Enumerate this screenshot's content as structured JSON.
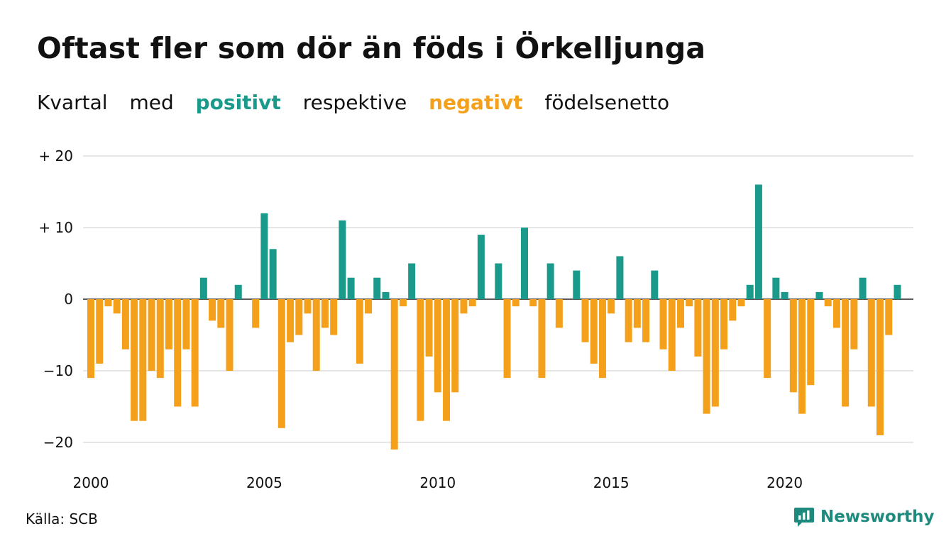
{
  "title": "Oftast fler som dör än föds i Örkelljunga",
  "subtitle": {
    "word1": "Kvartal",
    "word2": "med",
    "positive": "positivt",
    "word3": "respektive",
    "negative": "negativt",
    "word4": "födelsenetto"
  },
  "source": "Källa: SCB",
  "brand": "Newsworthy",
  "colors": {
    "positive": "#1a9a8b",
    "negative": "#f5a01a",
    "grid": "#dddddd",
    "brand": "#1d8a7d"
  },
  "chart_data": {
    "type": "bar",
    "x_start_year": 2000,
    "periods_per_year": 4,
    "ylim": [
      -22,
      20
    ],
    "yticks": [
      {
        "value": 20,
        "label": "+ 20"
      },
      {
        "value": 10,
        "label": "+ 10"
      },
      {
        "value": 0,
        "label": "0"
      },
      {
        "value": -10,
        "label": "−10"
      },
      {
        "value": -20,
        "label": "−20"
      }
    ],
    "xticks": [
      "2000",
      "2005",
      "2010",
      "2015",
      "2020"
    ],
    "values": [
      -11,
      -9,
      -1,
      -2,
      -7,
      -17,
      -17,
      -10,
      -11,
      -7,
      -15,
      -7,
      -15,
      3,
      -3,
      -4,
      -10,
      2,
      0,
      -4,
      12,
      7,
      -18,
      -6,
      -5,
      -2,
      -10,
      -4,
      -5,
      11,
      3,
      -9,
      -2,
      3,
      1,
      -21,
      -1,
      5,
      -17,
      -8,
      -13,
      -17,
      -13,
      -2,
      -1,
      9,
      0,
      5,
      -11,
      -1,
      10,
      -1,
      -11,
      5,
      -4,
      0,
      4,
      -6,
      -9,
      -11,
      -2,
      6,
      -6,
      -4,
      -6,
      4,
      -7,
      -10,
      -4,
      -1,
      -8,
      -16,
      -15,
      -7,
      -3,
      -1,
      2,
      16,
      -11,
      3,
      1,
      -13,
      -16,
      -12,
      1,
      -1,
      -4,
      -15,
      -7,
      3,
      -15,
      -19,
      -5,
      2
    ]
  }
}
